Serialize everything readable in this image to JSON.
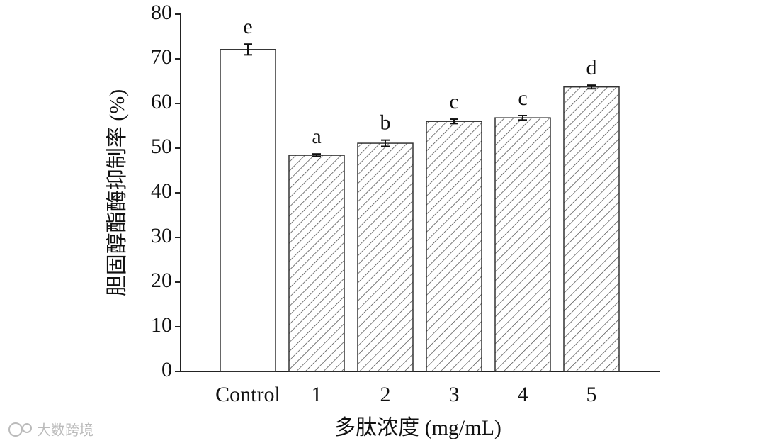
{
  "chart_data": {
    "type": "bar",
    "x_label": "多肽浓度 (mg/mL)",
    "y_label": "胆固醇酯酶抑制率 (%)",
    "categories": [
      "Control",
      "1",
      "2",
      "3",
      "4",
      "5"
    ],
    "values": [
      72.1,
      48.4,
      51.1,
      56.0,
      56.8,
      63.7
    ],
    "errors": [
      1.2,
      0.3,
      0.7,
      0.5,
      0.5,
      0.4
    ],
    "letters": [
      "e",
      "a",
      "b",
      "c",
      "c",
      "d"
    ],
    "hatched": [
      false,
      true,
      true,
      true,
      true,
      true
    ],
    "color": "#333333",
    "ylim": [
      0,
      80
    ],
    "yticks": [
      0,
      10,
      20,
      30,
      40,
      50,
      60,
      70,
      80
    ],
    "watermark": "大数跨境"
  }
}
